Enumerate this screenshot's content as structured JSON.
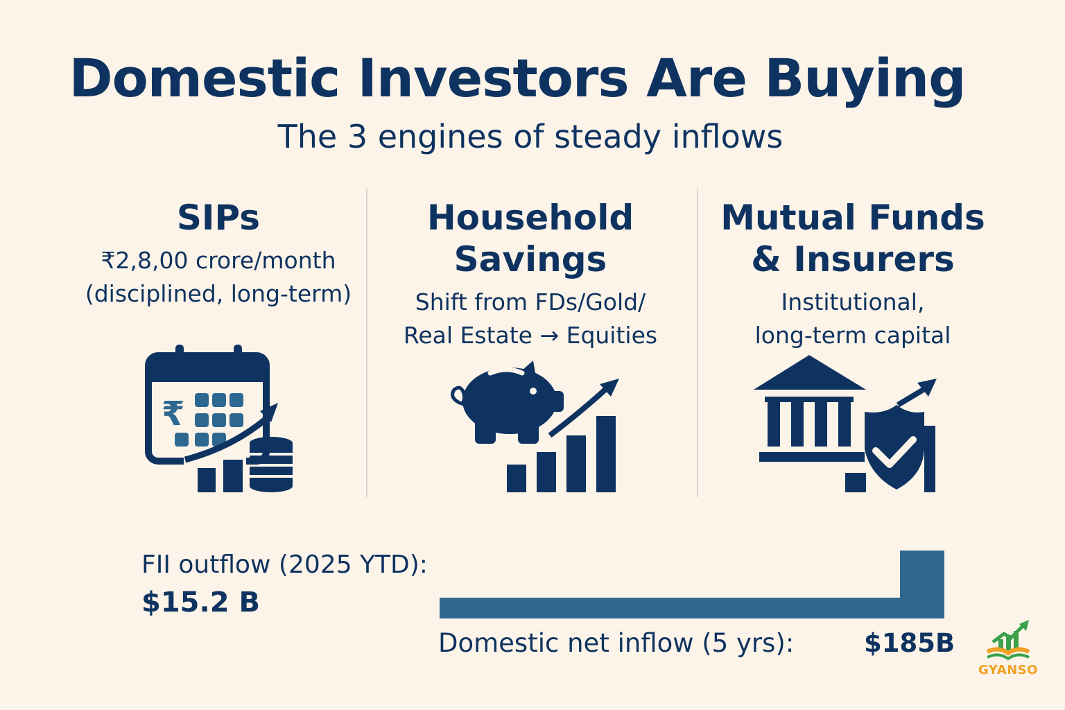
{
  "title": "Domestic Investors Are Buying",
  "subtitle": "The 3 engines of steady inflows",
  "columns": [
    {
      "heading": [
        "SIPs"
      ],
      "desc": [
        "₹2,8,00 crore/month",
        "(disciplined, long-term)"
      ],
      "icon": "calendar-rupee-coins-growth-icon"
    },
    {
      "heading": [
        "Household",
        "Savings"
      ],
      "desc": [
        "Shift from FDs/Gold/",
        "Real Estate → Equities"
      ],
      "icon": "piggy-bank-growth-icon"
    },
    {
      "heading": [
        "Mutual Funds",
        "& Insurers"
      ],
      "desc": [
        "Institutional,",
        "long-term capital"
      ],
      "icon": "bank-shield-icon"
    }
  ],
  "flows": {
    "fii_label": "FII outflow (2025 YTD):",
    "fii_value": "$15.2 B",
    "domestic_label": "Domestic net inflow (5 yrs):",
    "domestic_value": "$185B"
  },
  "logo": {
    "text": "GYANSO"
  },
  "colors": {
    "background": "#fcf4e9",
    "navy": "#0f3360",
    "steel_blue": "#2e6890",
    "logo_green": "#3aa04a",
    "logo_orange": "#f0a023"
  }
}
